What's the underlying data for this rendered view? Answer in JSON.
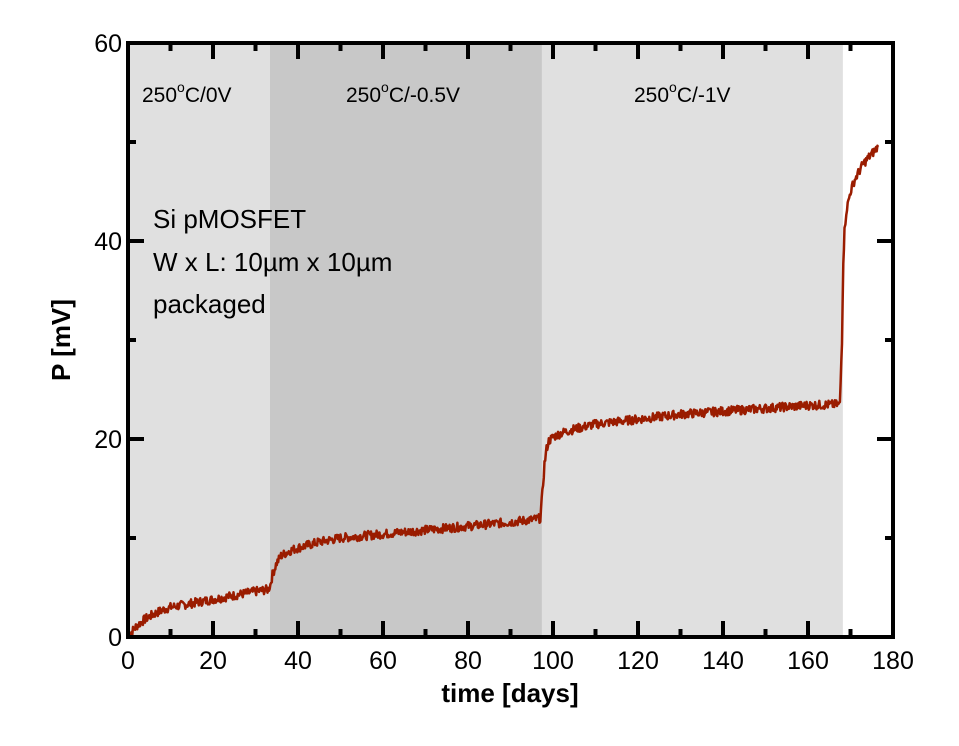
{
  "chart_data": {
    "type": "line",
    "title": "",
    "xlabel": "time  [days]",
    "ylabel": "P  [mV]",
    "xlim": [
      0,
      180
    ],
    "ylim": [
      0,
      60
    ],
    "x_ticks": [
      0,
      20,
      40,
      60,
      80,
      100,
      120,
      140,
      160,
      180
    ],
    "y_ticks": [
      0,
      20,
      40,
      60
    ],
    "x_minor_step": 10,
    "y_minor_step": 10,
    "grid": false,
    "regions": [
      {
        "label_main": "250",
        "label_sup": "o",
        "label_rest": "C/0V",
        "x_start": 0,
        "x_end": 33.4,
        "color": "#e0e0e0"
      },
      {
        "label_main": "250",
        "label_sup": "o",
        "label_rest": "C/-0.5V",
        "x_start": 33.4,
        "x_end": 97.4,
        "color": "#c8c8c8"
      },
      {
        "label_main": "250",
        "label_sup": "o",
        "label_rest": "C/-1V",
        "x_start": 97.4,
        "x_end": 168.2,
        "color": "#e0e0e0"
      }
    ],
    "annotation": [
      "Si pMOSFET",
      "W x L: 10µm x 10µm",
      "packaged"
    ],
    "series": [
      {
        "name": "P",
        "color": "#9a1c00",
        "x": [
          0,
          1,
          2,
          4,
          6,
          8,
          10,
          15,
          20,
          25,
          30,
          33,
          33.5,
          34,
          35,
          36,
          38,
          40,
          45,
          50,
          60,
          70,
          80,
          90,
          96,
          97,
          97.5,
          98,
          98.5,
          99,
          100,
          102,
          105,
          110,
          120,
          130,
          140,
          150,
          160,
          167.5,
          168,
          168.3,
          168.6,
          169,
          170,
          171,
          172,
          173,
          174,
          175,
          176.5
        ],
        "y": [
          0,
          0.6,
          1.1,
          1.8,
          2.3,
          2.7,
          3.0,
          3.4,
          3.8,
          4.2,
          4.6,
          4.8,
          5.3,
          6.3,
          7.5,
          8.2,
          8.7,
          9.0,
          9.6,
          10.0,
          10.4,
          10.8,
          11.2,
          11.6,
          11.9,
          12.0,
          14.5,
          17.5,
          19.0,
          19.8,
          20.2,
          20.6,
          21.0,
          21.5,
          22.0,
          22.5,
          22.8,
          23.1,
          23.4,
          23.5,
          30,
          38,
          41,
          43,
          45,
          46.2,
          47.0,
          47.8,
          48.3,
          48.8,
          49.5
        ]
      }
    ]
  }
}
